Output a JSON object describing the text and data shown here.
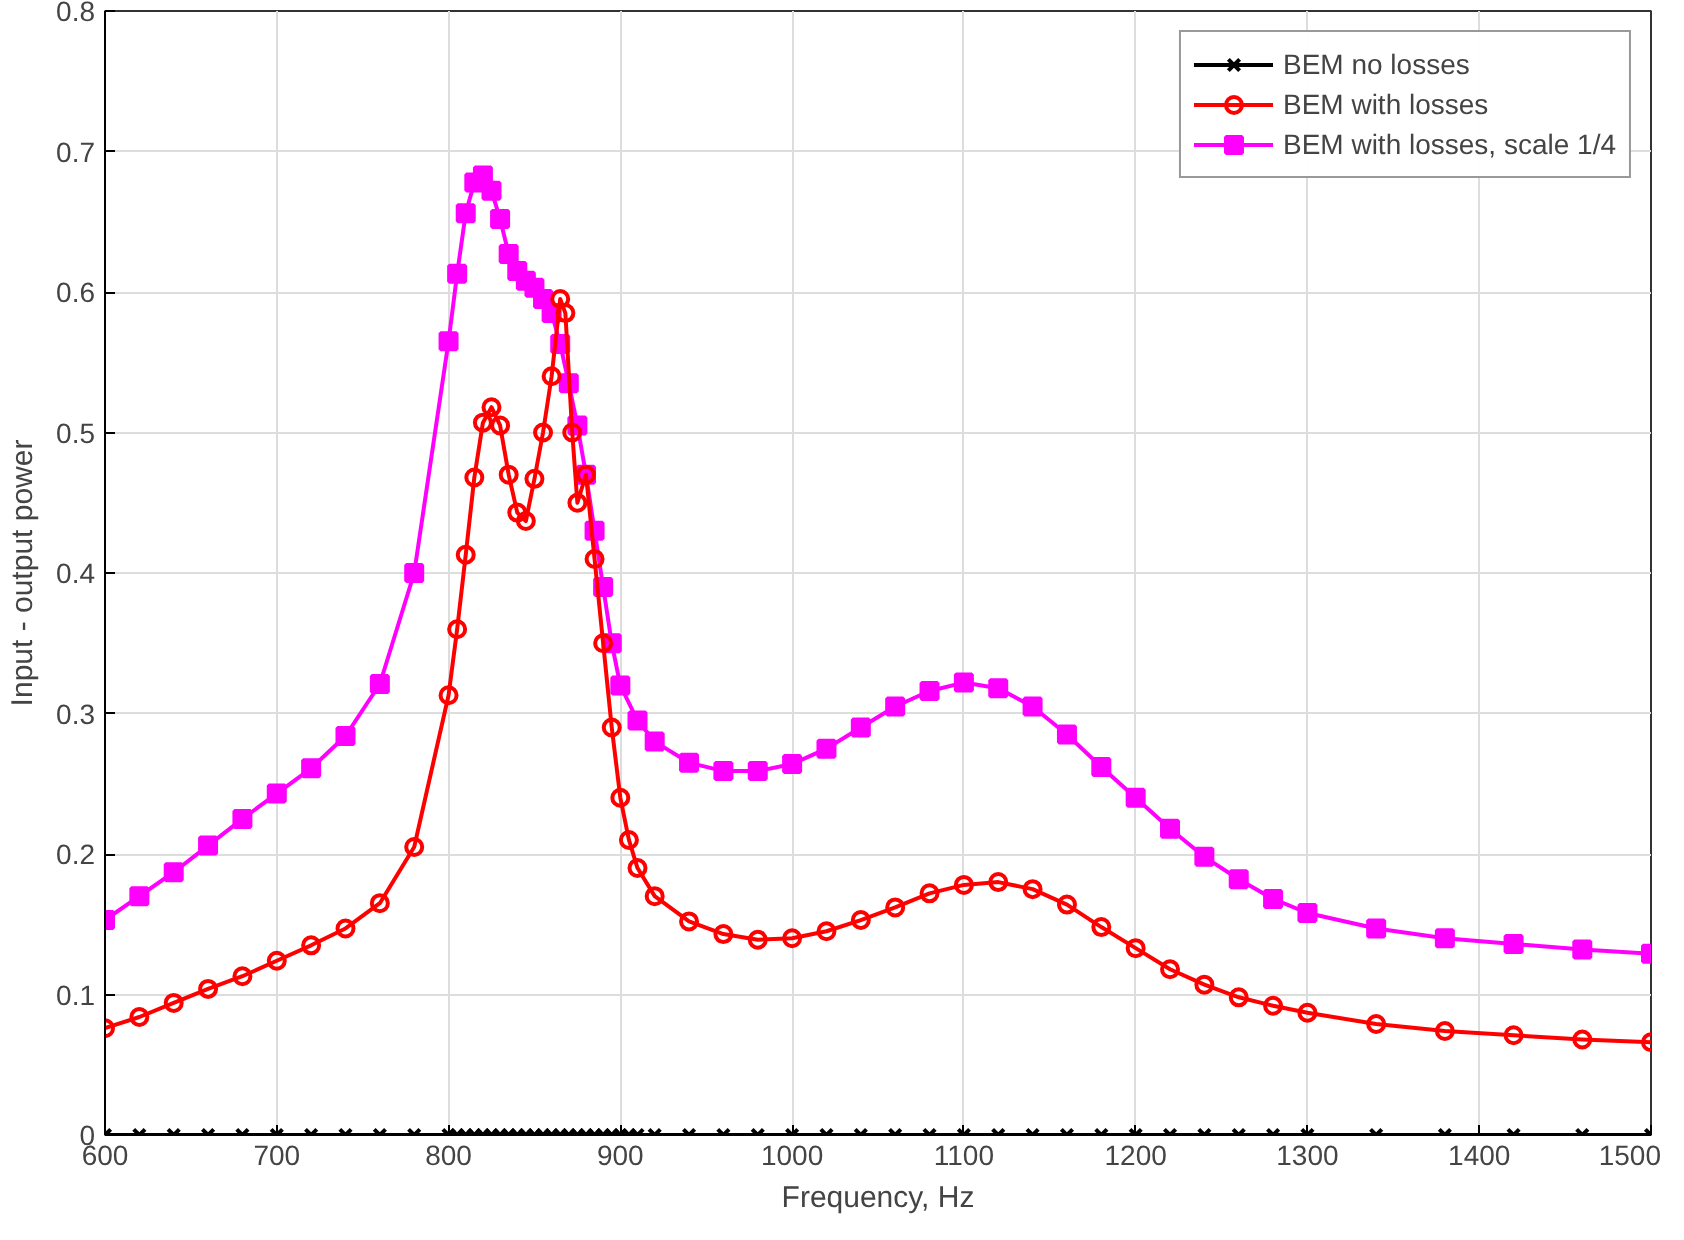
{
  "chart_data": {
    "type": "line",
    "xlabel": "Frequency, Hz",
    "ylabel": "Input - output power",
    "xlim": [
      600,
      1500
    ],
    "ylim": [
      0,
      0.8
    ],
    "xticks": [
      600,
      700,
      800,
      900,
      1000,
      1100,
      1200,
      1300,
      1400,
      1500
    ],
    "yticks": [
      0,
      0.1,
      0.2,
      0.3,
      0.4,
      0.5,
      0.6,
      0.7,
      0.8
    ],
    "grid": true,
    "legend": "top right",
    "line_style": "solid",
    "series": [
      {
        "name": "BEM no losses",
        "color": "#000000",
        "marker": "cross",
        "x": [
          600,
          620,
          640,
          660,
          680,
          700,
          720,
          740,
          760,
          780,
          800,
          805,
          810,
          815,
          820,
          825,
          830,
          835,
          840,
          845,
          850,
          855,
          860,
          865,
          870,
          875,
          880,
          885,
          890,
          895,
          900,
          905,
          910,
          920,
          940,
          960,
          980,
          1000,
          1020,
          1040,
          1060,
          1080,
          1100,
          1120,
          1140,
          1160,
          1180,
          1200,
          1220,
          1240,
          1260,
          1280,
          1300,
          1340,
          1380,
          1420,
          1460,
          1500
        ],
        "values": [
          0,
          0,
          0,
          0,
          0,
          0,
          0,
          0,
          0,
          0,
          0,
          0,
          0,
          0,
          0,
          0,
          0,
          0,
          0,
          0,
          0,
          0,
          0,
          0,
          0,
          0,
          0,
          0,
          0,
          0,
          0,
          0,
          0,
          0,
          0,
          0,
          0,
          0,
          0,
          0,
          0,
          0,
          0,
          0,
          0,
          0,
          0,
          0,
          0,
          0,
          0,
          0,
          0,
          0,
          0,
          0,
          0,
          0
        ]
      },
      {
        "name": "BEM with losses",
        "color": "#ff0000",
        "marker": "circle",
        "x": [
          600,
          620,
          640,
          660,
          680,
          700,
          720,
          740,
          760,
          780,
          800,
          805,
          810,
          815,
          820,
          825,
          830,
          835,
          840,
          845,
          850,
          855,
          860,
          865,
          868,
          872,
          875,
          880,
          885,
          890,
          895,
          900,
          905,
          910,
          920,
          940,
          960,
          980,
          1000,
          1020,
          1040,
          1060,
          1080,
          1100,
          1120,
          1140,
          1160,
          1180,
          1200,
          1220,
          1240,
          1260,
          1280,
          1300,
          1340,
          1380,
          1420,
          1460,
          1500
        ],
        "values": [
          0.076,
          0.084,
          0.094,
          0.104,
          0.113,
          0.124,
          0.135,
          0.147,
          0.165,
          0.205,
          0.313,
          0.36,
          0.413,
          0.468,
          0.507,
          0.518,
          0.505,
          0.47,
          0.443,
          0.437,
          0.467,
          0.5,
          0.54,
          0.595,
          0.585,
          0.5,
          0.45,
          0.47,
          0.41,
          0.35,
          0.29,
          0.24,
          0.21,
          0.19,
          0.17,
          0.152,
          0.143,
          0.139,
          0.14,
          0.145,
          0.153,
          0.162,
          0.172,
          0.178,
          0.18,
          0.175,
          0.164,
          0.148,
          0.133,
          0.118,
          0.107,
          0.098,
          0.092,
          0.087,
          0.079,
          0.074,
          0.071,
          0.068,
          0.066
        ]
      },
      {
        "name": "BEM with losses, scale 1/4",
        "color": "#ff00ff",
        "marker": "square",
        "x": [
          600,
          620,
          640,
          660,
          680,
          700,
          720,
          740,
          760,
          780,
          800,
          805,
          810,
          815,
          820,
          825,
          830,
          835,
          840,
          845,
          850,
          855,
          860,
          865,
          870,
          875,
          880,
          885,
          890,
          895,
          900,
          910,
          920,
          940,
          960,
          980,
          1000,
          1020,
          1040,
          1060,
          1080,
          1100,
          1120,
          1140,
          1160,
          1180,
          1200,
          1220,
          1240,
          1260,
          1280,
          1300,
          1340,
          1380,
          1420,
          1460,
          1500
        ],
        "values": [
          0.153,
          0.17,
          0.187,
          0.206,
          0.225,
          0.243,
          0.261,
          0.284,
          0.321,
          0.4,
          0.565,
          0.613,
          0.656,
          0.678,
          0.683,
          0.672,
          0.652,
          0.627,
          0.615,
          0.608,
          0.603,
          0.595,
          0.585,
          0.563,
          0.535,
          0.505,
          0.47,
          0.43,
          0.39,
          0.35,
          0.32,
          0.295,
          0.28,
          0.265,
          0.259,
          0.259,
          0.264,
          0.275,
          0.29,
          0.305,
          0.316,
          0.322,
          0.318,
          0.305,
          0.285,
          0.262,
          0.24,
          0.218,
          0.198,
          0.182,
          0.168,
          0.158,
          0.147,
          0.14,
          0.136,
          0.132,
          0.129
        ]
      }
    ]
  }
}
